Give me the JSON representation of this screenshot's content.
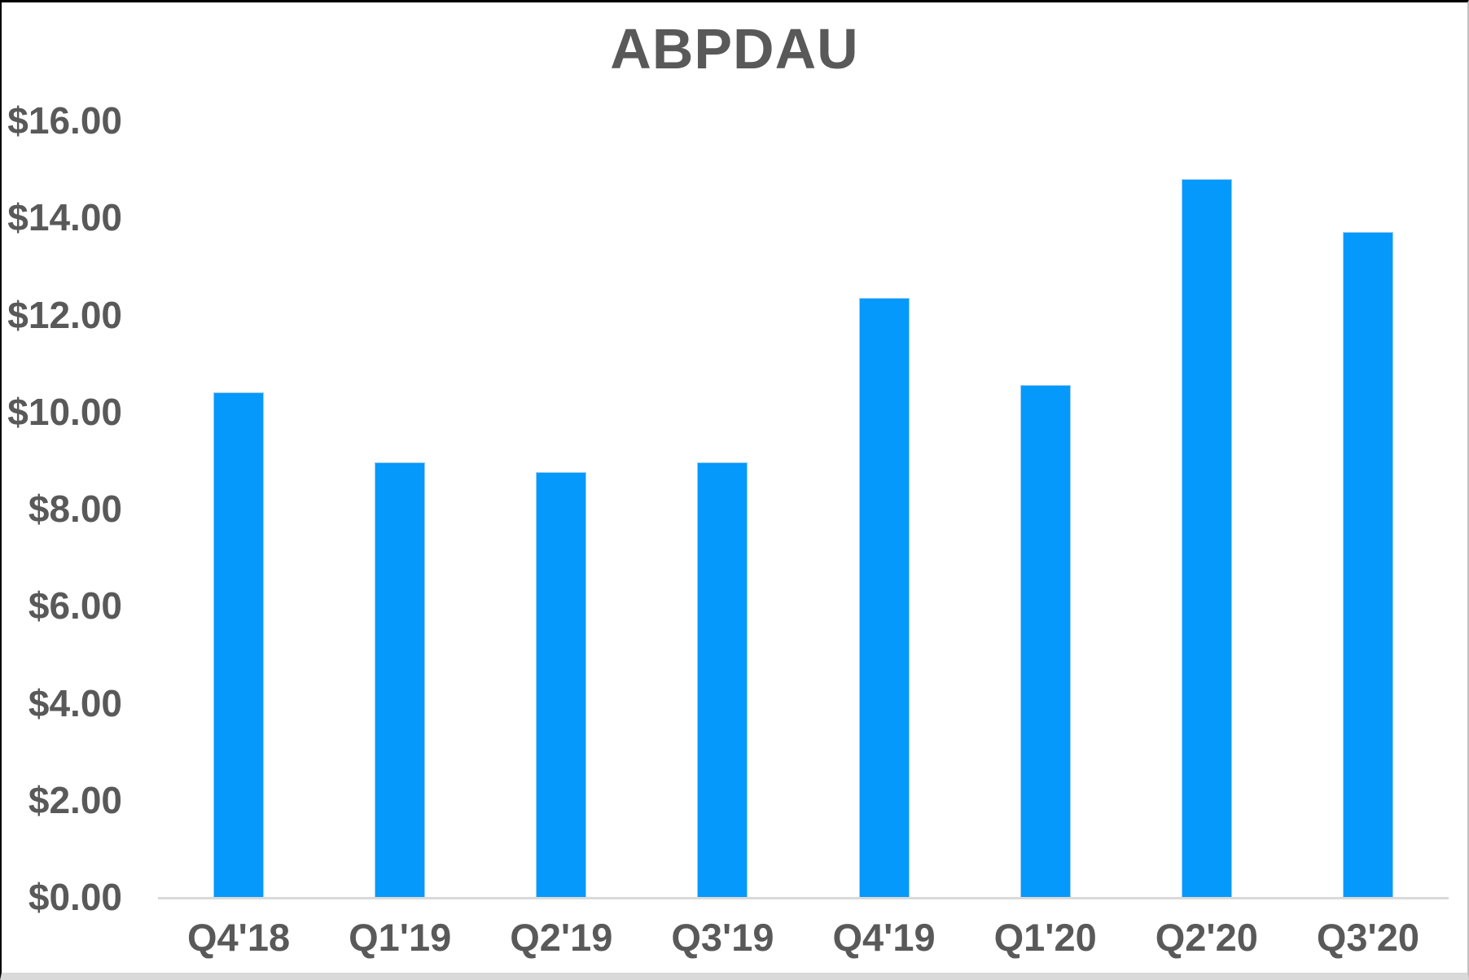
{
  "chart_data": {
    "type": "bar",
    "title": "ABPDAU",
    "categories": [
      "Q4'18",
      "Q1'19",
      "Q2'19",
      "Q3'19",
      "Q4'19",
      "Q1'20",
      "Q2'20",
      "Q3'20"
    ],
    "values": [
      10.4,
      8.95,
      8.75,
      8.95,
      12.35,
      10.55,
      14.8,
      13.7
    ],
    "xlabel": "",
    "ylabel": "",
    "ylim": [
      0,
      16
    ],
    "ytick_step": 2,
    "yticks": [
      "$16.00",
      "$14.00",
      "$12.00",
      "$10.00",
      "$8.00",
      "$6.00",
      "$4.00",
      "$2.00",
      "$0.00"
    ],
    "grid": false,
    "legend": false,
    "colors": {
      "bar_fill": "#0599FB",
      "bar_edge": "#9CCDF7",
      "axis_line": "#D9D9D9",
      "text": "#595959",
      "background": "#FFFFFF"
    }
  }
}
